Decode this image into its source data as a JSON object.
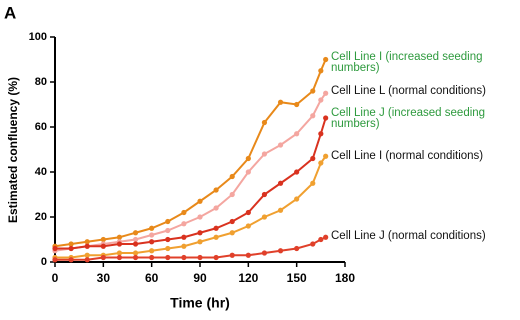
{
  "chart_data": {
    "type": "line",
    "panel_label": "A",
    "x_label": "Time (hr)",
    "y_label": "Estimated confluency (%)",
    "x": [
      0,
      10,
      20,
      30,
      40,
      50,
      60,
      70,
      80,
      90,
      100,
      110,
      120,
      130,
      140,
      150,
      160,
      165,
      168
    ],
    "series": [
      {
        "name": "Cell Line I (increased seeding numbers)",
        "color": "#e8891a",
        "label_color": "#2e9a3e",
        "values": [
          7,
          8,
          9,
          10,
          11,
          13,
          15,
          18,
          22,
          27,
          32,
          38,
          46,
          62,
          71,
          70,
          76,
          85,
          90
        ]
      },
      {
        "name": "Cell Line L (normal conditions)",
        "color": "#f4a6a0",
        "label_color": "#111111",
        "values": [
          5,
          6,
          7,
          8,
          9,
          10,
          12,
          14,
          17,
          20,
          24,
          30,
          40,
          48,
          52,
          57,
          65,
          72,
          75
        ]
      },
      {
        "name": "Cell Line J (increased seeding numbers)",
        "color": "#d9321f",
        "label_color": "#2e9a3e",
        "values": [
          6,
          6,
          7,
          7,
          8,
          8,
          9,
          10,
          11,
          13,
          15,
          18,
          22,
          30,
          35,
          40,
          46,
          57,
          64
        ]
      },
      {
        "name": "Cell Line I (normal conditions)",
        "color": "#f0a030",
        "label_color": "#111111",
        "values": [
          2,
          2,
          3,
          3,
          4,
          4,
          5,
          6,
          7,
          9,
          11,
          13,
          16,
          20,
          23,
          28,
          35,
          44,
          47
        ]
      },
      {
        "name": "Cell Line J (normal conditions)",
        "color": "#e0402a",
        "label_color": "#111111",
        "values": [
          1,
          1,
          1,
          2,
          2,
          2,
          2,
          2,
          2,
          2,
          2,
          3,
          3,
          4,
          5,
          6,
          8,
          10,
          11
        ]
      }
    ],
    "xlim": [
      0,
      180
    ],
    "xticks": [
      0,
      30,
      60,
      90,
      120,
      150,
      180
    ],
    "ylim": [
      0,
      100
    ],
    "yticks": [
      0,
      20,
      40,
      60,
      80,
      100
    ]
  }
}
